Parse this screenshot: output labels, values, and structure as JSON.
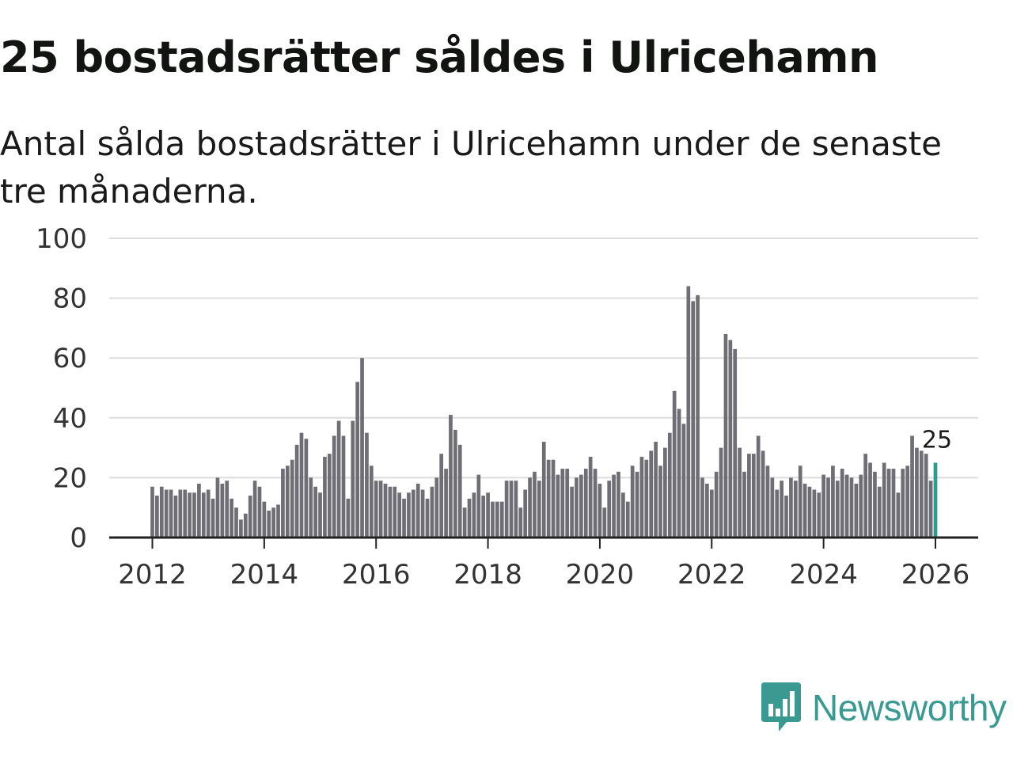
{
  "header": {
    "title": "25 bostadsrätter såldes i Ulricehamn",
    "subtitle": "Antal sålda bostadsrätter i Ulricehamn under de senaste tre månaderna."
  },
  "brand": {
    "name": "Newsworthy",
    "icon": "newsworthy-logo-icon",
    "color": "#3a9a92"
  },
  "chart_data": {
    "type": "bar",
    "title": "25 bostadsrätter såldes i Ulricehamn",
    "subtitle": "Antal sålda bostadsrätter i Ulricehamn under de senaste tre månaderna.",
    "xlabel": "",
    "ylabel": "",
    "start": "2012-01",
    "frequency": "monthly",
    "ylim": [
      0,
      100
    ],
    "yticks": [
      0,
      20,
      40,
      60,
      80,
      100
    ],
    "xticks": [
      "2012",
      "2014",
      "2016",
      "2018",
      "2020",
      "2022",
      "2024",
      "2026"
    ],
    "grid": true,
    "bar_color": "#6f6e75",
    "highlight_color": "#2a9d8f",
    "highlight_label": "25",
    "values": [
      17,
      14,
      17,
      16,
      16,
      14,
      16,
      16,
      15,
      15,
      18,
      15,
      16,
      13,
      20,
      18,
      19,
      13,
      10,
      6,
      8,
      14,
      19,
      17,
      12,
      9,
      10,
      11,
      23,
      24,
      26,
      31,
      35,
      33,
      20,
      17,
      15,
      27,
      28,
      34,
      39,
      34,
      13,
      39,
      52,
      60,
      35,
      24,
      19,
      19,
      18,
      17,
      17,
      15,
      13,
      15,
      16,
      18,
      16,
      13,
      17,
      20,
      28,
      23,
      41,
      36,
      31,
      10,
      13,
      15,
      21,
      14,
      15,
      12,
      12,
      12,
      19,
      19,
      19,
      10,
      16,
      20,
      22,
      19,
      32,
      26,
      26,
      21,
      23,
      23,
      17,
      20,
      21,
      23,
      27,
      23,
      18,
      10,
      19,
      21,
      22,
      15,
      12,
      24,
      22,
      27,
      26,
      29,
      32,
      24,
      30,
      35,
      49,
      43,
      38,
      84,
      79,
      81,
      20,
      18,
      16,
      22,
      30,
      68,
      66,
      63,
      30,
      22,
      28,
      28,
      34,
      29,
      24,
      20,
      16,
      19,
      14,
      20,
      19,
      24,
      18,
      17,
      16,
      15,
      21,
      20,
      24,
      19,
      23,
      21,
      20,
      18,
      21,
      28,
      25,
      22,
      17,
      25,
      23,
      23,
      15,
      23,
      24,
      34,
      30,
      29,
      28,
      19,
      25
    ]
  }
}
